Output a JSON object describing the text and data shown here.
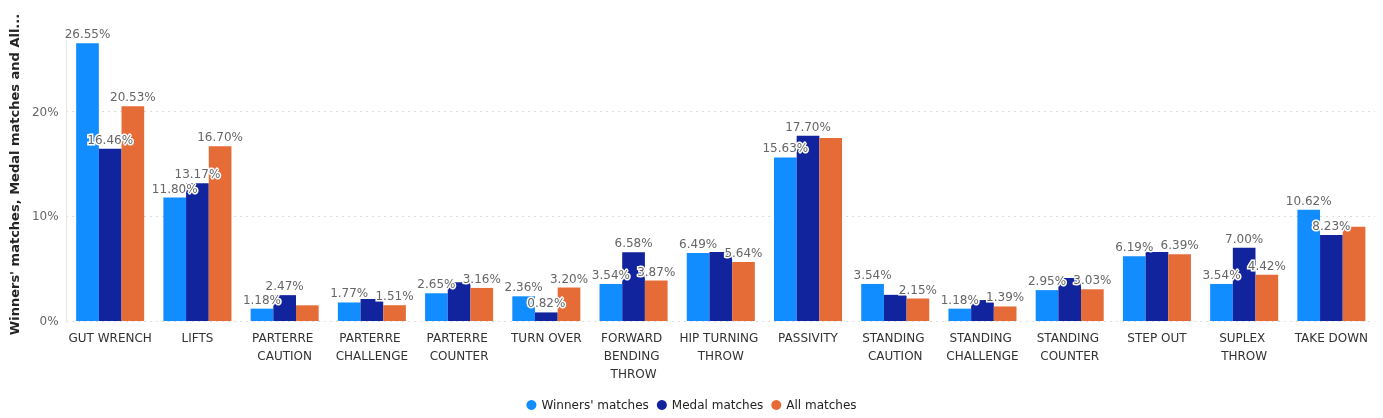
{
  "chart_data": {
    "type": "bar",
    "ylabel": "Winners' matches, Medal matches and All...",
    "categories": [
      "GUT WRENCH",
      "LIFTS",
      "PARTERRE CAUTION",
      "PARTERRE CHALLENGE",
      "PARTERRE COUNTER",
      "TURN OVER",
      "FORWARD BENDING THROW",
      "HIP TURNING THROW",
      "PASSIVITY",
      "STANDING CAUTION",
      "STANDING CHALLENGE",
      "STANDING COUNTER",
      "STEP OUT",
      "SUPLEX THROW",
      "TAKE DOWN"
    ],
    "series": [
      {
        "name": "Winners' matches",
        "color": "#118dff",
        "values": [
          26.55,
          11.8,
          1.18,
          1.77,
          2.65,
          2.36,
          3.54,
          6.49,
          15.63,
          3.54,
          1.18,
          2.95,
          6.19,
          3.54,
          10.62
        ],
        "value_labels": [
          "26.55%",
          "11.80%",
          "1.18%",
          "1.77%",
          "2.65%",
          "2.36%",
          "3.54%",
          "6.49%",
          "15.63%",
          "3.54%",
          "1.18%",
          "2.95%",
          "6.19%",
          "3.54%",
          "10.62%"
        ]
      },
      {
        "name": "Medal matches",
        "color": "#12239e",
        "values": [
          16.46,
          13.17,
          2.47,
          2.1,
          3.7,
          0.82,
          6.58,
          6.6,
          17.7,
          2.5,
          2.0,
          4.1,
          6.6,
          7.0,
          8.23
        ],
        "value_labels": [
          "16.46%",
          "13.17%",
          "2.47%",
          null,
          null,
          "0.82%",
          "6.58%",
          null,
          "17.70%",
          null,
          null,
          null,
          null,
          "7.00%",
          "8.23%"
        ]
      },
      {
        "name": "All matches",
        "color": "#e66c37",
        "values": [
          20.53,
          16.7,
          1.5,
          1.51,
          3.16,
          3.2,
          3.87,
          5.64,
          17.5,
          2.15,
          1.39,
          3.03,
          6.39,
          4.42,
          9.0
        ],
        "value_labels": [
          "20.53%",
          "16.70%",
          null,
          "1.51%",
          "3.16%",
          "3.20%",
          "3.87%",
          "5.64%",
          null,
          "2.15%",
          "1.39%",
          "3.03%",
          "6.39%",
          "4.42%",
          null
        ]
      }
    ],
    "ylim": [
      0,
      28
    ],
    "yticks": [
      {
        "value": 0,
        "label": "0%"
      },
      {
        "value": 10,
        "label": "10%"
      },
      {
        "value": 20,
        "label": "20%"
      }
    ],
    "grid": "y",
    "legend": "bottom"
  }
}
